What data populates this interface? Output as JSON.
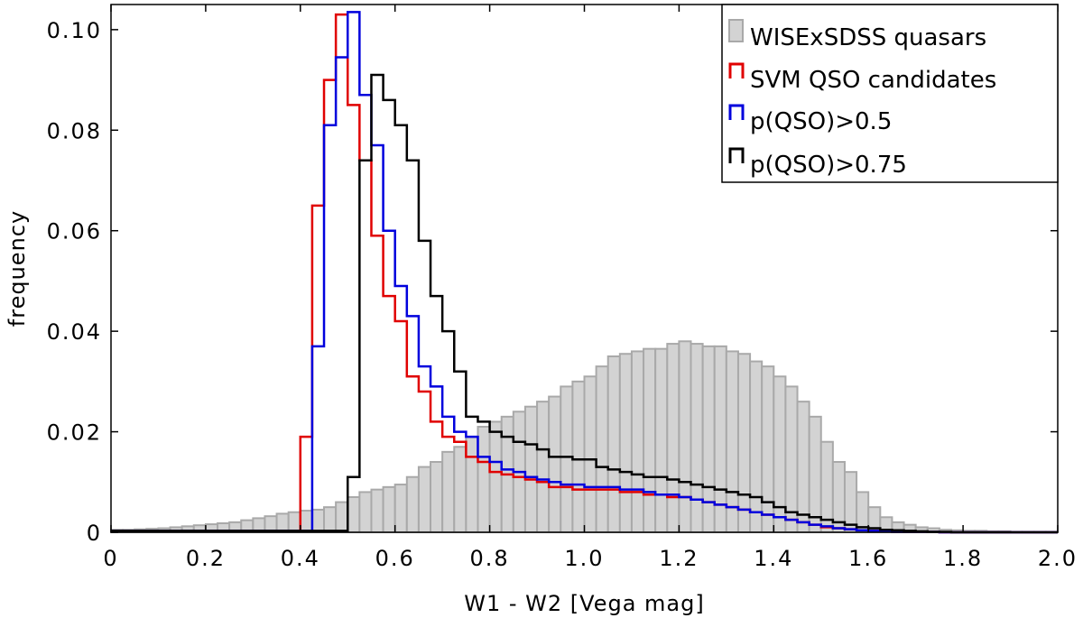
{
  "chart_data": {
    "type": "bar",
    "title": "",
    "xlabel": "W1 - W2 [Vega mag]",
    "ylabel": "frequency",
    "xlim": [
      0,
      2.0
    ],
    "ylim": [
      0,
      0.105
    ],
    "grid": false,
    "legend_position": "top-right",
    "xticks": [
      "0",
      "0.2",
      "0.4",
      "0.6",
      "0.8",
      "1.0",
      "1.2",
      "1.4",
      "1.6",
      "1.8",
      "2.0"
    ],
    "yticks": [
      "0",
      "0.02",
      "0.04",
      "0.06",
      "0.08",
      "0.10"
    ],
    "bin_width": 0.025,
    "bin_start": 0.0,
    "colors": {
      "wise_sdss": "#a9a9a9",
      "wise_sdss_fill": "#d3d3d3",
      "svm": "#e00000",
      "p05": "#0000dd",
      "p075": "#000000"
    },
    "series": [
      {
        "name": "WISExSDSS quasars",
        "style": "filled-bar",
        "values": [
          0.0005,
          0.0005,
          0.0006,
          0.0007,
          0.0008,
          0.001,
          0.0012,
          0.0014,
          0.0016,
          0.0018,
          0.002,
          0.0024,
          0.0028,
          0.0032,
          0.0037,
          0.004,
          0.0043,
          0.0045,
          0.005,
          0.006,
          0.007,
          0.008,
          0.0085,
          0.009,
          0.0095,
          0.011,
          0.013,
          0.014,
          0.016,
          0.017,
          0.019,
          0.021,
          0.022,
          0.023,
          0.024,
          0.025,
          0.026,
          0.027,
          0.029,
          0.03,
          0.031,
          0.033,
          0.035,
          0.0355,
          0.036,
          0.0365,
          0.0365,
          0.0375,
          0.038,
          0.0375,
          0.037,
          0.037,
          0.036,
          0.0355,
          0.034,
          0.033,
          0.031,
          0.029,
          0.026,
          0.023,
          0.018,
          0.014,
          0.012,
          0.008,
          0.005,
          0.003,
          0.002,
          0.0015,
          0.001,
          0.0008,
          0.0005,
          0.0004,
          0.0003,
          0.0003,
          0.0002,
          0.0002,
          0.0001,
          0.0001,
          0.0001,
          0.0001
        ]
      },
      {
        "name": "SVM QSO candidates",
        "style": "step",
        "values": [
          0.0003,
          0.0003,
          0.0003,
          0.0003,
          0.0003,
          0.0003,
          0.0003,
          0.0003,
          0.0003,
          0.0003,
          0.0003,
          0.0003,
          0.0003,
          0.0003,
          0.0003,
          0.0003,
          0.019,
          0.065,
          0.09,
          0.103,
          0.085,
          0.074,
          0.059,
          0.047,
          0.042,
          0.031,
          0.028,
          0.022,
          0.019,
          0.018,
          0.015,
          0.014,
          0.012,
          0.0115,
          0.011,
          0.0105,
          0.01,
          0.009,
          0.009,
          0.0085,
          0.0085,
          0.0085,
          0.0085,
          0.008,
          0.008,
          0.0075,
          0.0075,
          0.007,
          0.007,
          0.0065,
          0.006,
          0.0055,
          0.005,
          0.0045,
          0.004,
          0.0035,
          0.003,
          0.0025,
          0.002,
          0.0015,
          0.001,
          0.0008,
          0.0006,
          0.0004,
          0.0003,
          0.0002,
          0.0001,
          0.0001,
          0.0001,
          0.0001,
          0.0,
          0.0,
          0.0,
          0.0,
          0.0,
          0.0,
          0.0,
          0.0,
          0.0,
          0.0
        ]
      },
      {
        "name": "p(QSO)>0.5",
        "style": "step",
        "values": [
          0.0003,
          0.0003,
          0.0003,
          0.0003,
          0.0003,
          0.0003,
          0.0003,
          0.0003,
          0.0003,
          0.0003,
          0.0003,
          0.0003,
          0.0003,
          0.0003,
          0.0003,
          0.0003,
          0.0003,
          0.037,
          0.081,
          0.0945,
          0.1035,
          0.087,
          0.077,
          0.06,
          0.049,
          0.043,
          0.033,
          0.029,
          0.023,
          0.02,
          0.019,
          0.015,
          0.014,
          0.0125,
          0.012,
          0.011,
          0.0105,
          0.01,
          0.0095,
          0.0095,
          0.009,
          0.009,
          0.009,
          0.0085,
          0.0085,
          0.008,
          0.0075,
          0.0075,
          0.007,
          0.0065,
          0.006,
          0.0055,
          0.005,
          0.0045,
          0.004,
          0.0035,
          0.003,
          0.0025,
          0.002,
          0.0015,
          0.0012,
          0.0008,
          0.0006,
          0.0004,
          0.0003,
          0.0002,
          0.0001,
          0.0001,
          0.0001,
          0.0001,
          0.0,
          0.0,
          0.0,
          0.0,
          0.0,
          0.0,
          0.0,
          0.0,
          0.0,
          0.0
        ]
      },
      {
        "name": "p(QSO)>0.75",
        "style": "step",
        "values": [
          0.0003,
          0.0003,
          0.0003,
          0.0003,
          0.0003,
          0.0003,
          0.0003,
          0.0003,
          0.0003,
          0.0003,
          0.0003,
          0.0003,
          0.0003,
          0.0003,
          0.0003,
          0.0003,
          0.0003,
          0.0003,
          0.0003,
          0.0003,
          0.011,
          0.074,
          0.091,
          0.086,
          0.081,
          0.074,
          0.058,
          0.047,
          0.04,
          0.032,
          0.023,
          0.022,
          0.02,
          0.019,
          0.018,
          0.0175,
          0.0165,
          0.015,
          0.015,
          0.0145,
          0.0145,
          0.013,
          0.0125,
          0.012,
          0.0115,
          0.011,
          0.011,
          0.0105,
          0.01,
          0.0095,
          0.009,
          0.0085,
          0.008,
          0.0075,
          0.007,
          0.006,
          0.005,
          0.004,
          0.0035,
          0.003,
          0.0025,
          0.002,
          0.0015,
          0.001,
          0.0008,
          0.0005,
          0.0004,
          0.0003,
          0.0002,
          0.0001,
          0.0001,
          0.0,
          0.0,
          0.0,
          0.0,
          0.0,
          0.0,
          0.0,
          0.0,
          0.0
        ]
      }
    ]
  }
}
